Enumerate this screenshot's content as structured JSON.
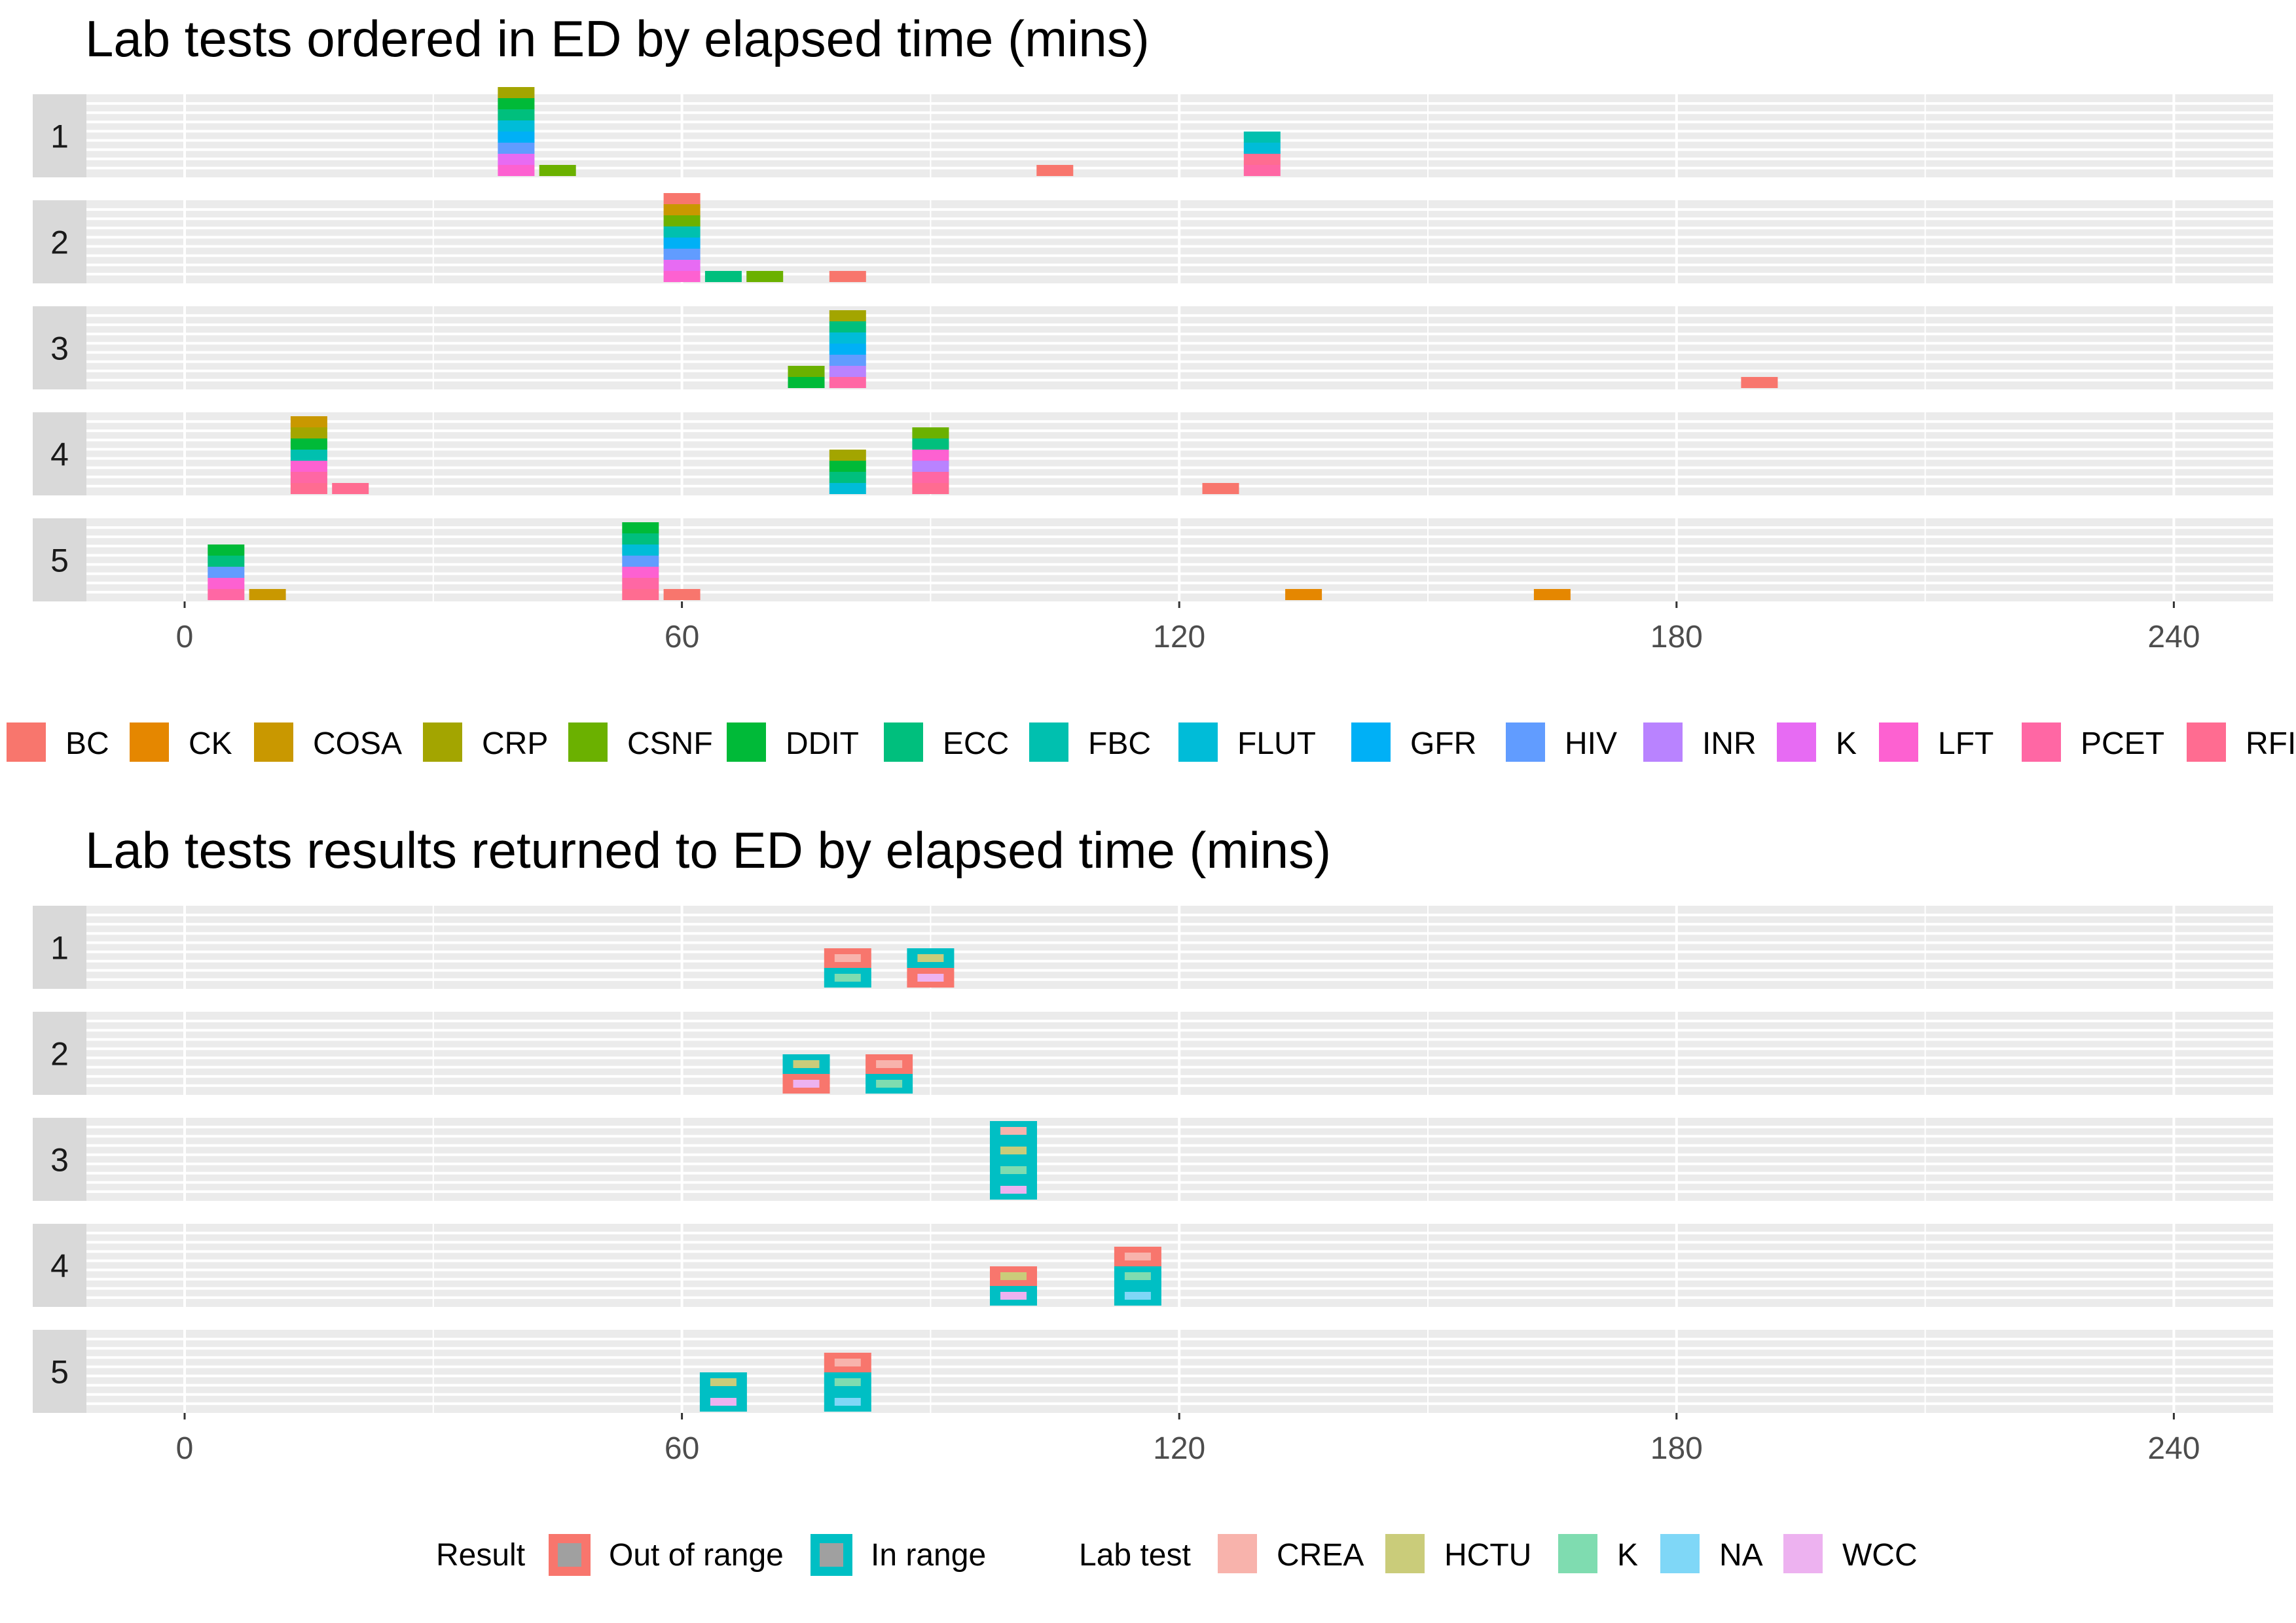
{
  "chart_data": [
    {
      "type": "tile",
      "title": "Lab tests ordered in ED by elapsed time (mins)",
      "xlabel": "",
      "ylabel": "",
      "xlim": [
        -12,
        252
      ],
      "x_ticks": [
        0,
        60,
        120,
        180,
        240
      ],
      "x_tick_labels": [
        "0",
        "60",
        "120",
        "180",
        "240"
      ],
      "facets": [
        "1",
        "2",
        "3",
        "4",
        "5"
      ],
      "legend_position": "top",
      "legend": [
        {
          "name": "BC",
          "color": "#F8766D"
        },
        {
          "name": "CK",
          "color": "#E58700"
        },
        {
          "name": "COSA",
          "color": "#C99800"
        },
        {
          "name": "CRP",
          "color": "#A3A500"
        },
        {
          "name": "CSNF",
          "color": "#6BB100"
        },
        {
          "name": "DDIT",
          "color": "#00BA38"
        },
        {
          "name": "ECC",
          "color": "#00BF7D"
        },
        {
          "name": "FBC",
          "color": "#00C0AF"
        },
        {
          "name": "FLUT",
          "color": "#00BCD8"
        },
        {
          "name": "GFR",
          "color": "#00B0F6"
        },
        {
          "name": "HIV",
          "color": "#619CFF"
        },
        {
          "name": "INR",
          "color": "#B983FF"
        },
        {
          "name": "K",
          "color": "#E76BF3"
        },
        {
          "name": "LFT",
          "color": "#FD61D1"
        },
        {
          "name": "PCET",
          "color": "#FF67A4"
        },
        {
          "name": "RFI",
          "color": "#FF6C91"
        }
      ],
      "series": [
        {
          "facet": "1",
          "x": 40,
          "stack": [
            "LFT",
            "K",
            "HIV",
            "GFR",
            "FLUT",
            "ECC",
            "DDIT",
            "CRP"
          ]
        },
        {
          "facet": "1",
          "x": 45,
          "stack": [
            "CSNF"
          ]
        },
        {
          "facet": "1",
          "x": 105,
          "stack": [
            "BC"
          ]
        },
        {
          "facet": "1",
          "x": 130,
          "stack": [
            "PCET",
            "RFI",
            "FLUT",
            "FBC"
          ]
        },
        {
          "facet": "2",
          "x": 60,
          "stack": [
            "LFT",
            "K",
            "HIV",
            "GFR",
            "FBC",
            "CSNF",
            "COSA",
            "BC"
          ]
        },
        {
          "facet": "2",
          "x": 65,
          "stack": [
            "ECC"
          ]
        },
        {
          "facet": "2",
          "x": 70,
          "stack": [
            "CSNF"
          ]
        },
        {
          "facet": "2",
          "x": 80,
          "stack": [
            "BC"
          ]
        },
        {
          "facet": "3",
          "x": 75,
          "stack": [
            "DDIT",
            "CSNF"
          ]
        },
        {
          "facet": "3",
          "x": 80,
          "stack": [
            "PCET",
            "INR",
            "HIV",
            "GFR",
            "FLUT",
            "ECC",
            "CRP"
          ]
        },
        {
          "facet": "3",
          "x": 190,
          "stack": [
            "BC"
          ]
        },
        {
          "facet": "4",
          "x": 15,
          "stack": [
            "RFI",
            "PCET",
            "LFT",
            "FBC",
            "DDIT",
            "CRP",
            "COSA"
          ]
        },
        {
          "facet": "4",
          "x": 20,
          "stack": [
            "RFI"
          ]
        },
        {
          "facet": "4",
          "x": 80,
          "stack": [
            "FLUT",
            "ECC",
            "DDIT",
            "CRP"
          ]
        },
        {
          "facet": "4",
          "x": 90,
          "stack": [
            "RFI",
            "PCET",
            "INR",
            "LFT",
            "ECC",
            "CSNF"
          ]
        },
        {
          "facet": "4",
          "x": 125,
          "stack": [
            "BC"
          ]
        },
        {
          "facet": "5",
          "x": 5,
          "stack": [
            "PCET",
            "LFT",
            "HIV",
            "ECC",
            "DDIT"
          ]
        },
        {
          "facet": "5",
          "x": 10,
          "stack": [
            "COSA"
          ]
        },
        {
          "facet": "5",
          "x": 55,
          "stack": [
            "RFI",
            "PCET",
            "LFT",
            "HIV",
            "FLUT",
            "ECC",
            "DDIT"
          ]
        },
        {
          "facet": "5",
          "x": 60,
          "stack": [
            "BC"
          ]
        },
        {
          "facet": "5",
          "x": 135,
          "stack": [
            "CK"
          ]
        },
        {
          "facet": "5",
          "x": 165,
          "stack": [
            "CK"
          ]
        }
      ]
    },
    {
      "type": "tile",
      "title": "Lab tests results returned to ED by elapsed time (mins)",
      "xlabel": "",
      "ylabel": "",
      "xlim": [
        -12,
        252
      ],
      "x_ticks": [
        0,
        60,
        120,
        180,
        240
      ],
      "x_tick_labels": [
        "0",
        "60",
        "120",
        "180",
        "240"
      ],
      "facets": [
        "1",
        "2",
        "3",
        "4",
        "5"
      ],
      "legend_position": "bottom",
      "legend_groups": [
        {
          "title": "Result",
          "items": [
            {
              "name": "Out of range",
              "color": "#F8766D"
            },
            {
              "name": "In range",
              "color": "#00BFC4"
            }
          ]
        },
        {
          "title": "Lab test",
          "items": [
            {
              "name": "CREA",
              "color": "#F8B3AC"
            },
            {
              "name": "HCTU",
              "color": "#CACC7A"
            },
            {
              "name": "K",
              "color": "#7FDCB0"
            },
            {
              "name": "NA",
              "color": "#7FD7F7"
            },
            {
              "name": "WCC",
              "color": "#EDB2F0"
            }
          ]
        }
      ],
      "series": [
        {
          "facet": "1",
          "x": 80,
          "tests": [
            {
              "test": "K",
              "result": "In range"
            },
            {
              "test": "CREA",
              "result": "Out of range"
            }
          ]
        },
        {
          "facet": "1",
          "x": 90,
          "tests": [
            {
              "test": "WCC",
              "result": "Out of range"
            },
            {
              "test": "HCTU",
              "result": "In range"
            }
          ]
        },
        {
          "facet": "2",
          "x": 75,
          "tests": [
            {
              "test": "WCC",
              "result": "Out of range"
            },
            {
              "test": "HCTU",
              "result": "In range"
            }
          ]
        },
        {
          "facet": "2",
          "x": 85,
          "tests": [
            {
              "test": "K",
              "result": "In range"
            },
            {
              "test": "CREA",
              "result": "Out of range"
            }
          ]
        },
        {
          "facet": "3",
          "x": 100,
          "tests": [
            {
              "test": "WCC",
              "result": "In range"
            },
            {
              "test": "K",
              "result": "In range"
            },
            {
              "test": "HCTU",
              "result": "In range"
            },
            {
              "test": "CREA",
              "result": "In range"
            }
          ]
        },
        {
          "facet": "4",
          "x": 100,
          "tests": [
            {
              "test": "WCC",
              "result": "In range"
            },
            {
              "test": "HCTU",
              "result": "Out of range"
            }
          ]
        },
        {
          "facet": "4",
          "x": 115,
          "tests": [
            {
              "test": "NA",
              "result": "In range"
            },
            {
              "test": "K",
              "result": "In range"
            },
            {
              "test": "CREA",
              "result": "Out of range"
            }
          ]
        },
        {
          "facet": "5",
          "x": 65,
          "tests": [
            {
              "test": "WCC",
              "result": "In range"
            },
            {
              "test": "HCTU",
              "result": "In range"
            }
          ]
        },
        {
          "facet": "5",
          "x": 80,
          "tests": [
            {
              "test": "NA",
              "result": "In range"
            },
            {
              "test": "K",
              "result": "In range"
            },
            {
              "test": "CREA",
              "result": "Out of range"
            }
          ]
        }
      ]
    }
  ]
}
